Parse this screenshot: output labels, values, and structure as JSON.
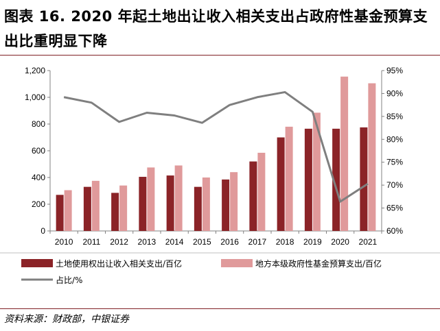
{
  "title": "图表 16. 2020 年起土地出让收入相关支出占政府性基金预算支出比重明显下降",
  "source": "资料来源：财政部，中银证券",
  "colors": {
    "series1": "#8b2327",
    "series2": "#e09a9b",
    "line": "#7f7f7f",
    "accent": "#7f1f24"
  },
  "chart_data": {
    "type": "bar",
    "categories": [
      "2010",
      "2011",
      "2012",
      "2013",
      "2014",
      "2015",
      "2016",
      "2017",
      "2018",
      "2019",
      "2020",
      "2021"
    ],
    "y_left": {
      "min": 0,
      "max": 1200,
      "ticks": [
        0,
        200,
        400,
        600,
        800,
        1000,
        1200
      ],
      "tick_labels": [
        "0",
        "200",
        "400",
        "600",
        "800",
        "1,000",
        "1,200"
      ]
    },
    "y_right": {
      "min": 60,
      "max": 95,
      "ticks": [
        60,
        65,
        70,
        75,
        80,
        85,
        90,
        95
      ],
      "tick_labels": [
        "60%",
        "65%",
        "70%",
        "75%",
        "80%",
        "85%",
        "90%",
        "95%"
      ]
    },
    "series": [
      {
        "name": "土地使用权出让收入相关支出/百亿",
        "type": "bar",
        "axis": "left",
        "values": [
          270,
          330,
          285,
          405,
          415,
          330,
          385,
          520,
          700,
          765,
          765,
          775
        ]
      },
      {
        "name": "地方本级政府性基金预算支出/百亿",
        "type": "bar",
        "axis": "left",
        "values": [
          305,
          375,
          340,
          475,
          490,
          400,
          440,
          585,
          780,
          885,
          1155,
          1105
        ]
      },
      {
        "name": "占比/%",
        "type": "line",
        "axis": "right",
        "values": [
          89.2,
          88.0,
          83.8,
          85.8,
          85.2,
          83.6,
          87.5,
          89.2,
          90.3,
          86.0,
          66.4,
          70.3
        ]
      }
    ],
    "legend_position": "bottom",
    "grid": false
  }
}
